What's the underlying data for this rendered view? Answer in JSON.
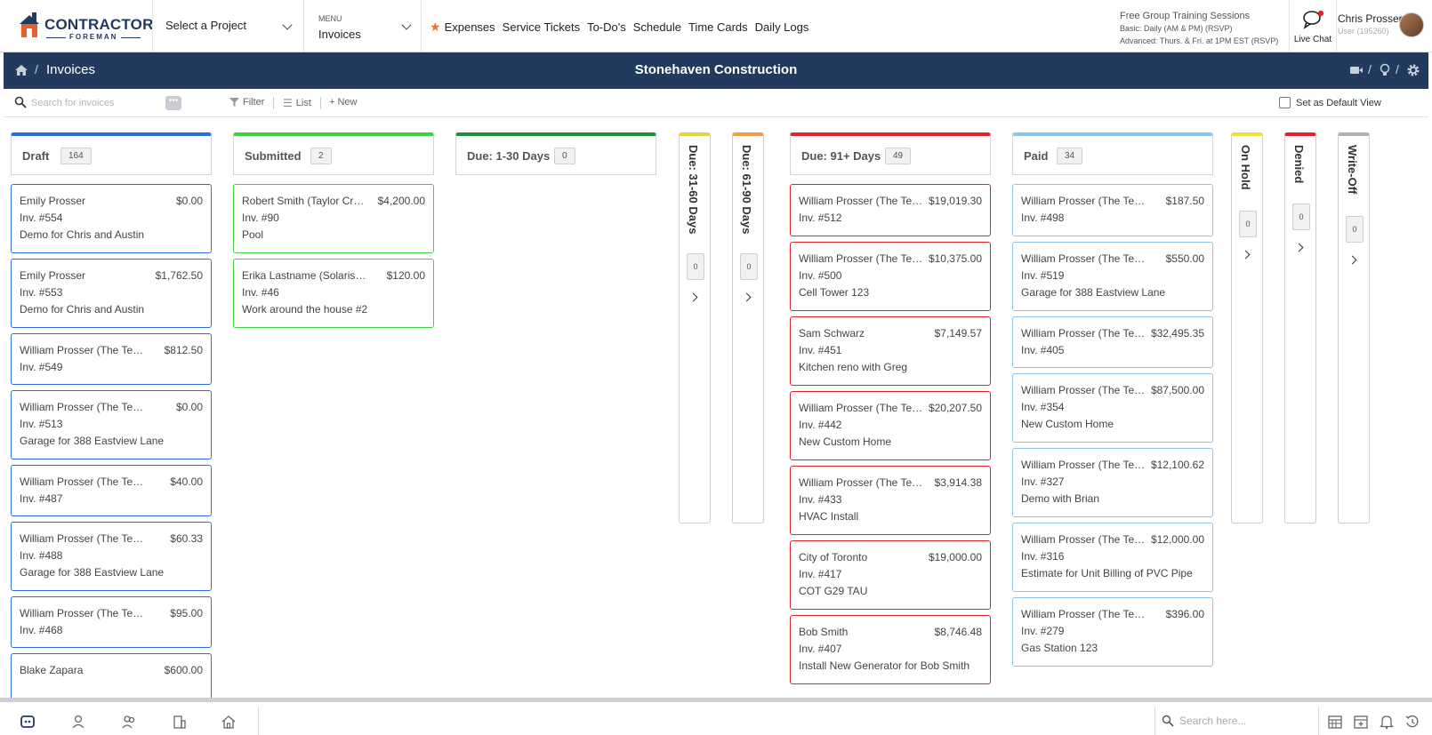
{
  "nav": {
    "logo_word1": "CONTRACTOR",
    "logo_word2": "FOREMAN",
    "project_select": "Select a Project",
    "menu_small": "MENU",
    "menu_value": "Invoices",
    "quick_links": [
      "Expenses",
      "Service Tickets",
      "To-Do's",
      "Schedule",
      "Time Cards",
      "Daily Logs"
    ],
    "training_title": "Free Group Training Sessions",
    "training_basic": "Basic: Daily (AM & PM) (RSVP)",
    "training_advanced": "Advanced: Thurs. & Fri. at 1PM EST (RSVP)",
    "live_chat": "Live Chat",
    "user_name": "Chris Prosser",
    "user_id": "User (195260)"
  },
  "header": {
    "breadcrumb_sep": "/",
    "breadcrumb": "Invoices",
    "company": "Stonehaven Construction"
  },
  "toolbar": {
    "search_placeholder": "Search for invoices",
    "more": "•••",
    "filter": "Filter",
    "list": "List",
    "new": "+ New",
    "default_view": "Set as Default View"
  },
  "columns": [
    {
      "label": "Draft",
      "count": "164",
      "color": "#2d6cdf",
      "cards": [
        {
          "name": "Emily Prosser",
          "amount": "$0.00",
          "inv": "Inv. #554",
          "desc": "Demo for Chris and Austin"
        },
        {
          "name": "Emily Prosser",
          "amount": "$1,762.50",
          "inv": "Inv. #553",
          "desc": "Demo for Chris and Austin"
        },
        {
          "name": "William Prosser (The Test...",
          "amount": "$812.50",
          "inv": "Inv. #549",
          "desc": ""
        },
        {
          "name": "William Prosser (The Test...",
          "amount": "$0.00",
          "inv": "Inv. #513",
          "desc": "Garage for 388 Eastview Lane"
        },
        {
          "name": "William Prosser (The Test...",
          "amount": "$40.00",
          "inv": "Inv. #487",
          "desc": ""
        },
        {
          "name": "William Prosser (The Test...",
          "amount": "$60.33",
          "inv": "Inv. #488",
          "desc": "Garage for 388 Eastview Lane"
        },
        {
          "name": "William Prosser (The Test...",
          "amount": "$95.00",
          "inv": "Inv. #468",
          "desc": ""
        },
        {
          "name": "Blake Zapara",
          "amount": "$600.00",
          "inv": "",
          "desc": ""
        }
      ]
    },
    {
      "label": "Submitted",
      "count": "2",
      "color": "#3fcf3f",
      "cards": [
        {
          "name": "Robert Smith (Taylor Cre...",
          "amount": "$4,200.00",
          "inv": "Inv. #90",
          "desc": "Pool"
        },
        {
          "name": "Erika Lastname (Solaris P...",
          "amount": "$120.00",
          "inv": "Inv. #46",
          "desc": "Work around the house #2"
        }
      ]
    },
    {
      "label": "Due: 1-30 Days",
      "count": "0",
      "color": "#1e8f3a",
      "cards": []
    },
    {
      "label": "Due: 91+ Days",
      "count": "49",
      "color": "#e0262b",
      "cards": [
        {
          "name": "William Prosser (The Test...",
          "amount": "$19,019.30",
          "inv": "Inv. #512",
          "desc": ""
        },
        {
          "name": "William Prosser (The Test...",
          "amount": "$10,375.00",
          "inv": "Inv. #500",
          "desc": "Cell Tower 123"
        },
        {
          "name": "Sam Schwarz",
          "amount": "$7,149.57",
          "inv": "Inv. #451",
          "desc": "Kitchen reno with Greg"
        },
        {
          "name": "William Prosser (The Test...",
          "amount": "$20,207.50",
          "inv": "Inv. #442",
          "desc": "New Custom Home"
        },
        {
          "name": "William Prosser (The Test...",
          "amount": "$3,914.38",
          "inv": "Inv. #433",
          "desc": "HVAC Install"
        },
        {
          "name": "City of Toronto",
          "amount": "$19,000.00",
          "inv": "Inv. #417",
          "desc": "COT G29 TAU"
        },
        {
          "name": "Bob Smith",
          "amount": "$8,746.48",
          "inv": "Inv. #407",
          "desc": "Install New Generator for Bob Smith"
        }
      ]
    },
    {
      "label": "Paid",
      "count": "34",
      "color": "#8fc5ec",
      "cards": [
        {
          "name": "William Prosser (The Test...",
          "amount": "$187.50",
          "inv": "Inv. #498",
          "desc": ""
        },
        {
          "name": "William Prosser (The Test...",
          "amount": "$550.00",
          "inv": "Inv. #519",
          "desc": "Garage for 388 Eastview Lane"
        },
        {
          "name": "William Prosser (The Test...",
          "amount": "$32,495.35",
          "inv": "Inv. #405",
          "desc": ""
        },
        {
          "name": "William Prosser (The Test...",
          "amount": "$87,500.00",
          "inv": "Inv. #354",
          "desc": "New Custom Home"
        },
        {
          "name": "William Prosser (The Test...",
          "amount": "$12,100.62",
          "inv": "Inv. #327",
          "desc": "Demo with Brian"
        },
        {
          "name": "William Prosser (The Test...",
          "amount": "$12,000.00",
          "inv": "Inv. #316",
          "desc": "Estimate for Unit Billing of PVC Pipe"
        },
        {
          "name": "William Prosser (The Test...",
          "amount": "$396.00",
          "inv": "Inv. #279",
          "desc": "Gas Station 123"
        }
      ]
    }
  ],
  "collapsed_columns": [
    {
      "label": "Due: 31-60 Days",
      "count": "0",
      "color": "#e6d43c"
    },
    {
      "label": "Due: 61-90 Days",
      "count": "0",
      "color": "#f0a04b"
    },
    {
      "label": "On Hold",
      "count": "0",
      "color": "#f0e03c"
    },
    {
      "label": "Denied",
      "count": "0",
      "color": "#e0262b"
    },
    {
      "label": "Write-Off",
      "count": "0",
      "color": "#b0b0b0"
    }
  ],
  "bottom": {
    "search_placeholder": "Search here..."
  }
}
